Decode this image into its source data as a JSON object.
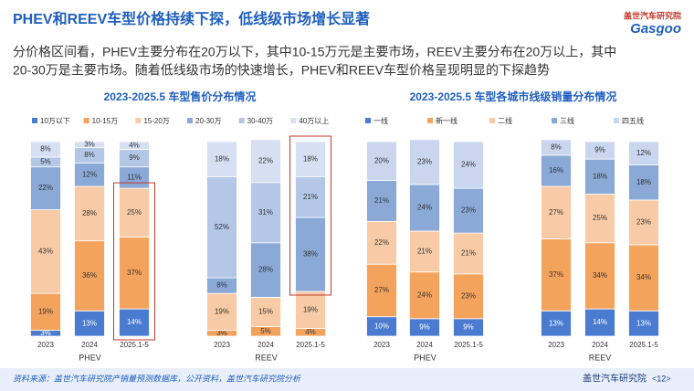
{
  "header": {
    "title": "PHEV和REEV车型价格持续下探，低线级市场增长显著",
    "logo_cn": "盖世汽车研究院",
    "logo_en": "Gasgoo"
  },
  "summary": [
    "分价格区间看，PHEV主要分布在20万以下，其中10-15万元是主要市场，REEV主要分布在20万以上，其中",
    "20-30万是主要市场。随着低线级市场的快速增长，PHEV和REEV车型价格呈现明显的下探趋势"
  ],
  "footer": {
    "source": "资料来源：盖世汽车研究院产销量预测数据库，公开资料，盖世汽车研究院分析",
    "brand": "盖世汽车研究院",
    "page": "<12>"
  },
  "chart_data": [
    {
      "type": "stacked_bar",
      "title": "2023-2025.5 车型售价分布情况",
      "categories": [
        "2023",
        "2024",
        "2025.1-5",
        "2023",
        "2024",
        "2025.1-5"
      ],
      "groups": [
        "PHEV",
        "REEV"
      ],
      "ylim": [
        0,
        100
      ],
      "series": [
        {
          "name": "10万以下",
          "color": "#4a7bd0",
          "values": [
            3,
            13,
            14,
            null,
            null,
            null
          ],
          "value_labels": [
            "3%",
            "13%",
            "14%",
            null,
            null,
            null
          ]
        },
        {
          "name": "10-15万",
          "color": "#f4a35c",
          "values": [
            19,
            36,
            37,
            3,
            5,
            4
          ],
          "value_labels": [
            "19%",
            "36%",
            "37%",
            "3%",
            "5%",
            "4%"
          ]
        },
        {
          "name": "15-20万",
          "color": "#f8cba6",
          "values": [
            43,
            28,
            25,
            19,
            15,
            19
          ],
          "value_labels": [
            "43%",
            "28%",
            "25%",
            "19%",
            "15%",
            "19%"
          ]
        },
        {
          "name": "20-30万",
          "color": "#8aa9d6",
          "values": [
            22,
            12,
            11,
            8,
            28,
            38
          ],
          "value_labels": [
            "22%",
            "12%",
            "11%",
            "8%",
            "28%",
            "38%"
          ]
        },
        {
          "name": "30-40万",
          "color": "#b4c7e7",
          "values": [
            5,
            8,
            9,
            52,
            31,
            21
          ],
          "value_labels": [
            "5%",
            "8%",
            "9%",
            "52%",
            "31%",
            "21%"
          ]
        },
        {
          "name": "40万以上",
          "color": "#d6e0f2",
          "values": [
            8,
            3,
            4,
            18,
            22,
            18
          ],
          "value_labels": [
            "8%",
            "3%",
            "4%",
            "18%",
            "22%",
            "18%"
          ]
        }
      ]
    },
    {
      "type": "stacked_bar",
      "title": "2023-2025.5 车型各城市线级销量分布情况",
      "categories": [
        "2023",
        "2024",
        "2025.1-5",
        "2023",
        "2024",
        "2025.1-5"
      ],
      "groups": [
        "PHEV",
        "REEV"
      ],
      "ylim": [
        0,
        100
      ],
      "series": [
        {
          "name": "一线",
          "color": "#4a7bd0",
          "values": [
            10,
            9,
            9,
            13,
            14,
            13
          ],
          "value_labels": [
            "10%",
            "9%",
            "9%",
            "13%",
            "14%",
            "13%"
          ]
        },
        {
          "name": "新一线",
          "color": "#f4a35c",
          "values": [
            27,
            24,
            23,
            37,
            34,
            34
          ],
          "value_labels": [
            "27%",
            "24%",
            "23%",
            "37%",
            "34%",
            "34%"
          ]
        },
        {
          "name": "二线",
          "color": "#f8cba6",
          "values": [
            22,
            21,
            21,
            27,
            25,
            23
          ],
          "value_labels": [
            "22%",
            "21%",
            "21%",
            "27%",
            "25%",
            "23%"
          ]
        },
        {
          "name": "三线",
          "color": "#8aa9d6",
          "values": [
            21,
            24,
            23,
            16,
            18,
            18
          ],
          "value_labels": [
            "21%",
            "24%",
            "23%",
            "16%",
            "18%",
            "18%"
          ]
        },
        {
          "name": "四五线",
          "color": "#c9d6ee",
          "values": [
            20,
            23,
            24,
            8,
            9,
            12
          ],
          "value_labels": [
            "20%",
            "23%",
            "24%",
            "8%",
            "9%",
            "12%"
          ]
        }
      ]
    }
  ]
}
